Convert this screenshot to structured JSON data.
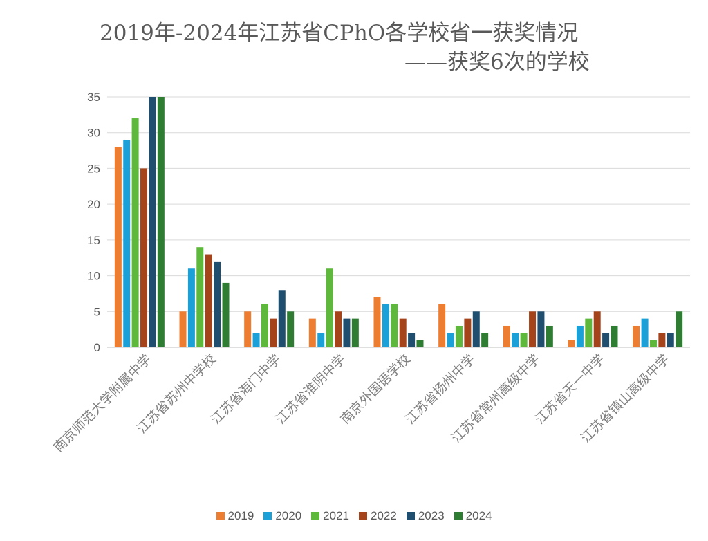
{
  "chart_data": {
    "type": "bar",
    "title": "2019年-2024年江苏省CPhO各学校省一获奖情况",
    "subtitle": "——获奖6次的学校",
    "xlabel": "",
    "ylabel": "",
    "ylim": [
      0,
      35
    ],
    "yticks": [
      0,
      5,
      10,
      15,
      20,
      25,
      30,
      35
    ],
    "grid": true,
    "legend": "bottom",
    "categories": [
      "南京师范大学附属中学",
      "江苏省苏州中学校",
      "江苏省海门中学",
      "江苏省淮阴中学",
      "南京外国语学校",
      "江苏省扬州中学",
      "江苏省常州高级中学",
      "江苏省天一中学",
      "江苏省镇山高级中学"
    ],
    "series": [
      {
        "name": "2019",
        "color": "#ED7D31",
        "values": [
          28,
          5,
          5,
          4,
          7,
          6,
          3,
          1,
          3
        ]
      },
      {
        "name": "2020",
        "color": "#1BA1D8",
        "values": [
          29,
          11,
          2,
          2,
          6,
          2,
          2,
          3,
          4
        ]
      },
      {
        "name": "2021",
        "color": "#5DB83C",
        "values": [
          32,
          14,
          6,
          11,
          6,
          3,
          2,
          4,
          1
        ]
      },
      {
        "name": "2022",
        "color": "#A5441A",
        "values": [
          25,
          13,
          4,
          5,
          4,
          4,
          5,
          5,
          2
        ]
      },
      {
        "name": "2023",
        "color": "#1F4E6E",
        "values": [
          35,
          12,
          8,
          4,
          2,
          5,
          5,
          2,
          2
        ]
      },
      {
        "name": "2024",
        "color": "#2E7D32",
        "values": [
          35,
          9,
          5,
          4,
          1,
          2,
          3,
          3,
          5
        ]
      }
    ]
  }
}
